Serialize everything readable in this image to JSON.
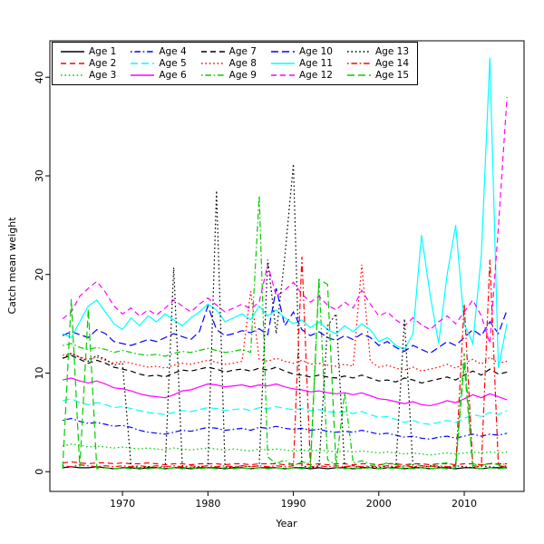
{
  "figure": {
    "xlabel": "Year",
    "ylabel": "Catch mean weight"
  },
  "chart_data": {
    "type": "line",
    "title": "",
    "xlabel": "Year",
    "ylabel": "Catch mean weight",
    "xlim": [
      1961.5,
      2017
    ],
    "ylim": [
      -2,
      43.7
    ],
    "x_ticks": [
      1970,
      1980,
      1990,
      2000,
      2010
    ],
    "y_ticks": [
      0,
      10,
      20,
      30,
      40
    ],
    "grid": false,
    "legend_position": "top-left",
    "legend_columns": 5,
    "x": [
      1963,
      1964,
      1965,
      1966,
      1967,
      1968,
      1969,
      1970,
      1971,
      1972,
      1973,
      1974,
      1975,
      1976,
      1977,
      1978,
      1979,
      1980,
      1981,
      1982,
      1983,
      1984,
      1985,
      1986,
      1987,
      1988,
      1989,
      1990,
      1991,
      1992,
      1993,
      1994,
      1995,
      1996,
      1997,
      1998,
      1999,
      2000,
      2001,
      2002,
      2003,
      2004,
      2005,
      2006,
      2007,
      2008,
      2009,
      2010,
      2011,
      2012,
      2013,
      2014,
      2015
    ],
    "series": [
      {
        "name": "Age 1",
        "color": "#000000",
        "linetype": "solid",
        "values": [
          0.4,
          0.5,
          0.4,
          0.4,
          0.5,
          0.4,
          0.3,
          0.4,
          0.4,
          0.3,
          0.4,
          0.4,
          0.3,
          0.4,
          0.4,
          0.3,
          0.4,
          0.4,
          0.4,
          0.3,
          0.4,
          0.4,
          0.3,
          0.4,
          0.4,
          0.4,
          0.3,
          0.4,
          0.4,
          0.3,
          0.4,
          0.3,
          0.4,
          0.4,
          0.3,
          0.4,
          0.4,
          0.3,
          0.4,
          0.4,
          0.3,
          0.4,
          0.4,
          0.3,
          0.4,
          0.4,
          0.3,
          0.4,
          0.4,
          0.3,
          0.4,
          0.4,
          0.4
        ]
      },
      {
        "name": "Age 2",
        "color": "#FF0000",
        "linetype": "dashed",
        "values": [
          0.9,
          1.0,
          0.9,
          0.8,
          0.9,
          0.9,
          0.8,
          0.9,
          0.8,
          0.8,
          0.9,
          0.8,
          0.7,
          0.8,
          0.8,
          0.7,
          0.8,
          0.8,
          0.8,
          0.7,
          0.8,
          0.8,
          0.7,
          0.8,
          0.8,
          0.8,
          0.7,
          0.8,
          0.8,
          0.7,
          0.8,
          0.7,
          0.8,
          0.8,
          0.7,
          0.8,
          0.8,
          0.7,
          0.8,
          0.8,
          0.7,
          0.8,
          0.8,
          0.7,
          0.8,
          0.8,
          0.7,
          0.8,
          0.8,
          0.7,
          0.8,
          0.8,
          0.8
        ]
      },
      {
        "name": "Age 3",
        "color": "#00CD00",
        "linetype": "dotted",
        "values": [
          2.6,
          2.8,
          2.7,
          2.5,
          2.6,
          2.5,
          2.4,
          2.5,
          2.4,
          2.3,
          2.4,
          2.3,
          2.2,
          2.4,
          2.3,
          2.2,
          2.3,
          2.4,
          2.3,
          2.2,
          2.3,
          2.2,
          2.1,
          2.3,
          2.2,
          2.3,
          2.2,
          2.1,
          2.2,
          2.1,
          2.2,
          2.1,
          2.0,
          2.1,
          2.0,
          2.1,
          2.0,
          1.9,
          2.0,
          1.9,
          1.8,
          1.9,
          1.8,
          1.7,
          1.8,
          1.9,
          1.8,
          1.9,
          2.0,
          1.9,
          2.0,
          1.9,
          2.0
        ]
      },
      {
        "name": "Age 4",
        "color": "#0000FF",
        "linetype": "dotdash",
        "values": [
          5.2,
          5.4,
          5.1,
          4.9,
          5.0,
          4.8,
          4.6,
          4.7,
          4.5,
          4.2,
          4.0,
          3.9,
          3.8,
          4.0,
          4.2,
          4.1,
          4.3,
          4.5,
          4.4,
          4.2,
          4.3,
          4.4,
          4.2,
          4.5,
          4.4,
          4.6,
          4.4,
          4.3,
          4.4,
          4.2,
          4.3,
          4.1,
          4.0,
          4.1,
          4.0,
          4.2,
          4.0,
          3.8,
          3.9,
          3.7,
          3.5,
          3.6,
          3.4,
          3.3,
          3.5,
          3.6,
          3.4,
          3.6,
          3.8,
          3.6,
          3.8,
          3.7,
          3.9
        ]
      },
      {
        "name": "Age 5",
        "color": "#00FFFF",
        "linetype": "longdash",
        "values": [
          7.2,
          7.4,
          7.0,
          6.8,
          7.0,
          6.8,
          6.5,
          6.6,
          6.4,
          6.2,
          6.0,
          5.9,
          5.8,
          6.0,
          6.2,
          6.1,
          6.3,
          6.5,
          6.4,
          6.2,
          6.3,
          6.4,
          6.2,
          6.5,
          6.4,
          6.6,
          6.4,
          6.3,
          6.4,
          6.2,
          6.3,
          6.1,
          6.0,
          6.1,
          5.9,
          6.1,
          5.8,
          5.5,
          5.6,
          5.3,
          5.0,
          5.2,
          4.9,
          4.8,
          5.0,
          5.2,
          5.0,
          5.4,
          5.8,
          5.6,
          6.0,
          5.8,
          6.2
        ]
      },
      {
        "name": "Age 6",
        "color": "#FF00FF",
        "linetype": "solid",
        "values": [
          9.3,
          9.5,
          9.2,
          9.0,
          9.2,
          8.9,
          8.5,
          8.4,
          8.2,
          7.9,
          7.7,
          7.6,
          7.5,
          7.8,
          8.2,
          8.3,
          8.6,
          8.9,
          8.8,
          8.6,
          8.7,
          8.8,
          8.6,
          8.8,
          8.7,
          8.9,
          8.6,
          8.4,
          8.3,
          8.1,
          8.2,
          8.0,
          7.9,
          8.0,
          7.8,
          8.0,
          7.7,
          7.4,
          7.3,
          7.1,
          6.9,
          7.1,
          6.8,
          6.7,
          6.9,
          7.2,
          7.0,
          7.4,
          7.8,
          7.5,
          7.9,
          7.6,
          7.3
        ]
      },
      {
        "name": "Age 7",
        "color": "#000000",
        "linetype": "dashed",
        "values": [
          11.5,
          11.8,
          11.4,
          11.0,
          11.3,
          11.0,
          10.6,
          10.4,
          10.2,
          9.9,
          9.7,
          9.8,
          9.6,
          10.0,
          10.3,
          10.2,
          10.4,
          10.6,
          10.4,
          10.1,
          10.3,
          10.4,
          10.2,
          10.5,
          10.3,
          10.6,
          10.2,
          9.9,
          9.8,
          9.6,
          9.8,
          9.6,
          9.5,
          9.7,
          9.5,
          9.8,
          9.5,
          9.2,
          9.3,
          9.1,
          9.5,
          9.3,
          9.0,
          9.2,
          9.4,
          9.6,
          9.3,
          9.8,
          10.2,
          9.8,
          10.4,
          9.9,
          10.1
        ]
      },
      {
        "name": "Age 8",
        "color": "#FF0000",
        "linetype": "dotted",
        "values": [
          11.8,
          12.0,
          11.6,
          11.4,
          11.6,
          11.3,
          11.0,
          11.2,
          11.0,
          10.8,
          10.6,
          10.7,
          10.5,
          10.8,
          11.0,
          10.9,
          11.1,
          11.3,
          11.1,
          10.9,
          11.0,
          11.2,
          18.3,
          11.4,
          11.2,
          11.5,
          11.2,
          11.0,
          11.3,
          10.9,
          11.0,
          10.8,
          10.7,
          10.9,
          10.7,
          21.0,
          11.2,
          10.6,
          10.8,
          10.5,
          10.3,
          10.6,
          10.2,
          10.4,
          10.6,
          10.9,
          10.5,
          11.0,
          11.4,
          10.9,
          11.6,
          11.0,
          11.2
        ]
      },
      {
        "name": "Age 9",
        "color": "#00CD00",
        "linetype": "dotdash",
        "values": [
          12.8,
          13.0,
          12.6,
          12.4,
          12.6,
          12.4,
          12.1,
          12.3,
          12.1,
          11.9,
          11.8,
          11.9,
          11.7,
          12.0,
          12.2,
          12.1,
          12.3,
          12.5,
          12.3,
          12.1,
          12.2,
          12.4,
          12.1,
          28.0,
          1.5,
          0.8,
          1.2,
          0.6,
          1.0,
          0.8,
          19.5,
          1.2,
          0.7,
          8.0,
          0.9,
          1.1,
          0.8,
          0.6,
          0.9,
          0.7,
          0.5,
          0.8,
          0.6,
          0.5,
          0.8,
          0.9,
          0.6,
          12.0,
          0.8,
          0.6,
          0.9,
          0.7,
          0.8
        ]
      },
      {
        "name": "Age 10",
        "color": "#0000FF",
        "linetype": "longdash",
        "values": [
          13.8,
          14.2,
          13.9,
          13.6,
          14.4,
          14.0,
          13.2,
          13.0,
          12.8,
          13.1,
          13.4,
          13.2,
          13.6,
          14.0,
          13.7,
          13.4,
          14.2,
          16.8,
          14.4,
          13.8,
          14.0,
          14.3,
          14.1,
          14.5,
          13.9,
          18.6,
          14.8,
          16.2,
          14.4,
          13.8,
          14.2,
          13.6,
          13.3,
          13.8,
          13.4,
          14.0,
          13.6,
          12.8,
          13.2,
          12.6,
          12.2,
          12.8,
          12.4,
          12.0,
          12.6,
          13.2,
          12.8,
          13.6,
          14.4,
          13.8,
          15.2,
          14.0,
          16.4
        ]
      },
      {
        "name": "Age 11",
        "color": "#00FFFF",
        "linetype": "solid",
        "values": [
          14.0,
          13.6,
          15.2,
          16.8,
          17.4,
          16.2,
          15.0,
          14.4,
          15.6,
          14.8,
          15.8,
          15.2,
          16.0,
          15.4,
          14.8,
          15.6,
          16.2,
          17.0,
          16.4,
          15.2,
          15.6,
          16.0,
          15.4,
          16.8,
          15.8,
          16.4,
          15.6,
          15.0,
          15.4,
          14.6,
          15.2,
          14.4,
          14.0,
          14.8,
          14.2,
          15.0,
          14.4,
          13.2,
          13.6,
          12.8,
          12.4,
          14.0,
          24.0,
          18.0,
          13.0,
          20.0,
          25.0,
          15.0,
          13.0,
          22.0,
          42.0,
          10.5,
          15.0
        ]
      },
      {
        "name": "Age 12",
        "color": "#FF00FF",
        "linetype": "dashed",
        "values": [
          15.5,
          16.2,
          17.8,
          18.6,
          19.3,
          18.2,
          16.8,
          16.0,
          16.6,
          15.8,
          16.4,
          15.9,
          16.6,
          17.4,
          16.8,
          16.2,
          17.0,
          17.6,
          16.9,
          16.2,
          16.6,
          17.0,
          16.5,
          17.2,
          21.0,
          17.8,
          18.4,
          19.2,
          18.0,
          17.2,
          17.8,
          16.9,
          16.4,
          17.2,
          16.6,
          18.4,
          17.0,
          15.8,
          16.2,
          15.4,
          14.8,
          15.6,
          14.9,
          14.4,
          15.2,
          15.8,
          15.0,
          16.2,
          17.4,
          15.8,
          13.0,
          24.8,
          38.0
        ]
      },
      {
        "name": "Age 13",
        "color": "#000000",
        "linetype": "dotted",
        "values": [
          11.5,
          12.0,
          11.6,
          11.2,
          11.8,
          11.4,
          10.8,
          11.0,
          0.6,
          0.4,
          0.5,
          0.4,
          0.5,
          20.7,
          0.6,
          0.4,
          0.5,
          0.6,
          28.5,
          0.5,
          0.4,
          0.6,
          0.5,
          0.6,
          21.5,
          14.0,
          21.8,
          31.2,
          0.6,
          0.4,
          0.5,
          14.8,
          16.0,
          0.5,
          0.6,
          0.4,
          0.5,
          0.4,
          0.6,
          0.4,
          15.5,
          0.5,
          0.4,
          0.6,
          0.5,
          0.4,
          0.6,
          0.5,
          0.4,
          0.6,
          0.5,
          0.4,
          0.6
        ]
      },
      {
        "name": "Age 14",
        "color": "#FF0000",
        "linetype": "dotdash",
        "values": [
          0.6,
          0.5,
          0.7,
          0.6,
          0.5,
          0.6,
          0.5,
          0.6,
          0.5,
          0.6,
          0.5,
          0.6,
          0.5,
          0.6,
          0.5,
          0.6,
          0.5,
          0.6,
          0.5,
          0.6,
          0.5,
          0.6,
          0.5,
          0.6,
          0.5,
          0.6,
          0.5,
          0.6,
          21.8,
          0.5,
          0.6,
          0.5,
          0.6,
          0.5,
          0.6,
          0.5,
          0.6,
          0.5,
          0.6,
          0.5,
          0.6,
          0.5,
          0.6,
          0.5,
          0.6,
          0.5,
          0.6,
          17.0,
          0.6,
          0.5,
          21.5,
          0.6,
          0.5
        ]
      },
      {
        "name": "Age 15",
        "color": "#00CD00",
        "linetype": "longdash",
        "values": [
          0.3,
          17.5,
          0.4,
          16.5,
          0.3,
          0.4,
          0.3,
          0.4,
          0.3,
          0.4,
          0.3,
          0.4,
          0.3,
          0.4,
          0.3,
          0.4,
          0.3,
          0.4,
          0.3,
          0.4,
          0.3,
          0.4,
          0.3,
          0.4,
          0.3,
          0.4,
          0.3,
          0.4,
          0.3,
          0.4,
          19.5,
          19.0,
          0.4,
          0.3,
          0.4,
          0.3,
          0.4,
          0.3,
          0.4,
          0.3,
          0.4,
          0.3,
          0.4,
          0.3,
          0.4,
          0.3,
          0.4,
          11.0,
          0.4,
          0.3,
          0.4,
          0.3,
          0.4
        ]
      }
    ]
  }
}
